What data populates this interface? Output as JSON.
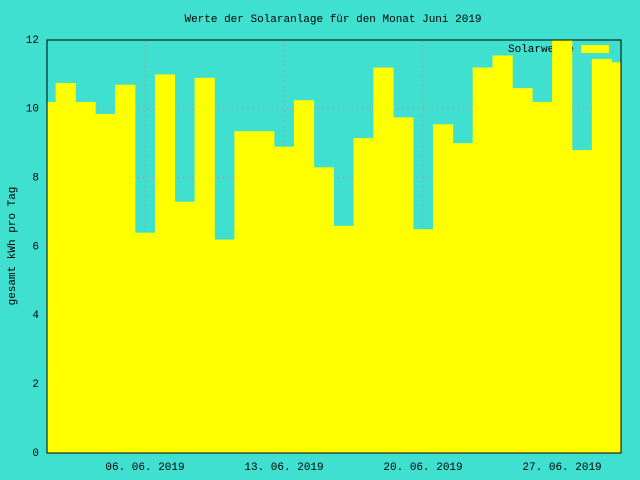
{
  "chart_data": {
    "type": "bar",
    "title": "Werte der Solaranlage für den Monat Juni 2019",
    "y_label": "gesamt kWh pro Tag",
    "categories": [
      null,
      null,
      null,
      null,
      null,
      "06. 06. 2019",
      null,
      null,
      null,
      null,
      null,
      null,
      "13. 06. 2019",
      null,
      null,
      null,
      null,
      null,
      null,
      "20. 06. 2019",
      null,
      null,
      null,
      null,
      null,
      null,
      "27. 06. 2019",
      null,
      null,
      null
    ],
    "series": [
      {
        "name": "Solarwerte",
        "color": "#ffff00",
        "values": [
          10.2,
          10.75,
          10.2,
          9.85,
          10.7,
          6.4,
          11.0,
          7.3,
          10.9,
          6.2,
          9.35,
          9.35,
          8.9,
          10.25,
          8.3,
          6.6,
          9.15,
          11.2,
          9.75,
          6.5,
          9.55,
          9.0,
          11.2,
          11.55,
          10.6,
          10.2,
          12.0,
          8.8,
          11.45,
          11.35
        ]
      }
    ],
    "ylim": [
      0,
      12
    ],
    "yticks": [
      0,
      2,
      4,
      6,
      8,
      10,
      12
    ],
    "grid": true,
    "legend": "top-right",
    "background": "#40e0d0"
  }
}
